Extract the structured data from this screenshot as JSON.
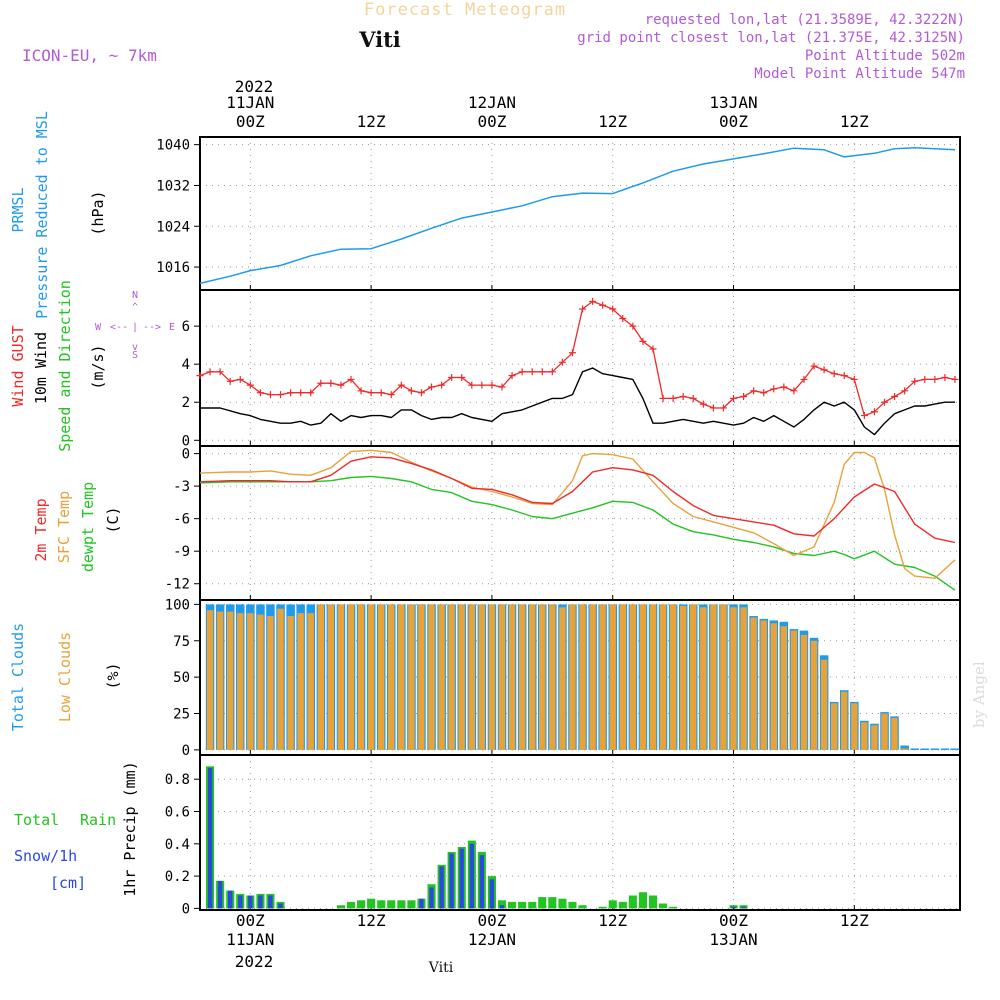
{
  "header": {
    "title": "Forecast Meteogram",
    "station": "Viti",
    "model": "ICON-EU, ~ 7km",
    "requested": "requested lon,lat (21.3589E, 42.3222N)",
    "gridpoint": "grid point closest lon,lat (21.375E, 42.3125N)",
    "point_alt": "Point Altitude 502m",
    "model_alt": "Model Point Altitude 547m",
    "footer_station": "Viti",
    "watermark": "by Angel"
  },
  "time_axis": {
    "year": "2022",
    "ticks": [
      {
        "h": 0,
        "top": "11JAN",
        "label": "00Z"
      },
      {
        "h": 12,
        "top": "",
        "label": "12Z"
      },
      {
        "h": 24,
        "top": "12JAN",
        "label": "00Z"
      },
      {
        "h": 36,
        "top": "",
        "label": "12Z"
      },
      {
        "h": 48,
        "top": "13JAN",
        "label": "00Z"
      },
      {
        "h": 60,
        "top": "",
        "label": "12Z"
      }
    ],
    "range_hours": [
      -5,
      70.5
    ]
  },
  "colors": {
    "pressure": "#1e9bea",
    "gust": "#ee2a2a",
    "wind10": "#000000",
    "temp2m": "#ee2a2a",
    "sfc": "#e8a23a",
    "dewpt": "#22c422",
    "total_cloud": "#1e9bea",
    "low_cloud": "#e8a23a",
    "rain": "#22c422",
    "snow": "#2a4ade",
    "title": "#f2d59c",
    "purple": "#b25ad6"
  },
  "chart_data": [
    {
      "id": "pressure",
      "type": "line",
      "ylabels": [
        "PRMSL",
        "Pressure Reduced to MSL",
        "(hPa)"
      ],
      "yticks": [
        1016,
        1024,
        1032,
        1040
      ],
      "ylim": [
        1011.5,
        1041.5
      ],
      "grid": true,
      "series": [
        {
          "x": [
            -5,
            -2,
            0,
            3,
            6,
            9,
            12,
            15,
            18,
            21,
            24,
            27,
            30,
            33,
            36,
            39,
            42,
            45,
            48,
            51,
            54,
            57,
            59,
            62,
            64,
            66,
            68,
            70
          ],
          "y": [
            1012.8,
            1014.2,
            1015.3,
            1016.3,
            1018.2,
            1019.5,
            1019.6,
            1021.5,
            1023.6,
            1025.6,
            1026.8,
            1028.0,
            1029.8,
            1030.5,
            1030.4,
            1032.5,
            1034.8,
            1036.2,
            1037.2,
            1038.2,
            1039.3,
            1039.0,
            1037.6,
            1038.3,
            1039.2,
            1039.4,
            1039.2,
            1039.0
          ]
        }
      ]
    },
    {
      "id": "wind",
      "type": "line",
      "ylabels": [
        "Wind GUST",
        "10m Wind",
        "Speed and Direction",
        "(m/s)"
      ],
      "compass": [
        "N",
        "W",
        "E",
        "S"
      ],
      "yticks": [
        0,
        2,
        4,
        6
      ],
      "ylim": [
        -0.3,
        7.9
      ],
      "grid": true,
      "series": [
        {
          "name": "Wind GUST",
          "x": [
            -5,
            -4,
            -3,
            -2,
            -1,
            0,
            1,
            2,
            3,
            4,
            5,
            6,
            7,
            8,
            9,
            10,
            11,
            12,
            13,
            14,
            15,
            16,
            17,
            18,
            19,
            20,
            21,
            22,
            23,
            24,
            25,
            26,
            27,
            28,
            29,
            30,
            31,
            32,
            33,
            34,
            35,
            36,
            37,
            38,
            39,
            40,
            41,
            42,
            43,
            44,
            45,
            46,
            47,
            48,
            49,
            50,
            51,
            52,
            53,
            54,
            55,
            56,
            57,
            58,
            59,
            60,
            61,
            62,
            63,
            64,
            65,
            66,
            67,
            68,
            69,
            70
          ],
          "y": [
            3.4,
            3.6,
            3.6,
            3.1,
            3.2,
            2.9,
            2.5,
            2.4,
            2.4,
            2.5,
            2.5,
            2.5,
            3.0,
            3.0,
            2.9,
            3.2,
            2.6,
            2.5,
            2.5,
            2.4,
            2.9,
            2.6,
            2.5,
            2.8,
            2.9,
            3.3,
            3.3,
            2.9,
            2.9,
            2.9,
            2.8,
            3.4,
            3.6,
            3.6,
            3.6,
            3.6,
            4.1,
            4.6,
            6.9,
            7.3,
            7.1,
            6.9,
            6.4,
            6.0,
            5.2,
            4.8,
            2.2,
            2.2,
            2.3,
            2.2,
            1.9,
            1.7,
            1.7,
            2.2,
            2.3,
            2.6,
            2.5,
            2.7,
            2.8,
            2.6,
            3.2,
            3.9,
            3.7,
            3.5,
            3.4,
            3.2,
            1.3,
            1.5,
            2.0,
            2.3,
            2.6,
            3.1,
            3.2,
            3.2,
            3.3,
            3.2
          ]
        },
        {
          "name": "10m Wind",
          "x": [
            -5,
            -3,
            -1,
            0,
            1,
            2,
            3,
            4,
            5,
            6,
            7,
            8,
            9,
            10,
            11,
            12,
            13,
            14,
            15,
            16,
            17,
            18,
            19,
            20,
            21,
            22,
            23,
            24,
            25,
            26,
            27,
            28,
            29,
            30,
            31,
            32,
            33,
            34,
            35,
            36,
            37,
            38,
            39,
            40,
            41,
            42,
            43,
            44,
            45,
            46,
            47,
            48,
            49,
            50,
            51,
            52,
            53,
            54,
            55,
            56,
            57,
            58,
            59,
            60,
            61,
            62,
            63,
            64,
            65,
            66,
            67,
            68,
            69,
            70
          ],
          "y": [
            1.7,
            1.7,
            1.4,
            1.3,
            1.1,
            1.0,
            0.9,
            0.9,
            1.0,
            0.8,
            0.9,
            1.4,
            1.0,
            1.3,
            1.2,
            1.3,
            1.3,
            1.2,
            1.6,
            1.6,
            1.3,
            1.1,
            1.2,
            1.2,
            1.4,
            1.2,
            1.1,
            1.0,
            1.4,
            1.5,
            1.6,
            1.8,
            2.0,
            2.2,
            2.2,
            2.4,
            3.6,
            3.8,
            3.5,
            3.4,
            3.3,
            3.2,
            2.2,
            0.9,
            0.9,
            1.0,
            1.1,
            1.0,
            0.9,
            1.0,
            0.9,
            0.8,
            0.9,
            1.2,
            1.0,
            1.3,
            1.0,
            0.7,
            1.1,
            1.6,
            2.0,
            1.8,
            2.0,
            1.6,
            0.7,
            0.3,
            0.9,
            1.4,
            1.6,
            1.8,
            1.8,
            1.9,
            2.0,
            2.0
          ]
        }
      ]
    },
    {
      "id": "temperature",
      "type": "line",
      "ylabels": [
        "2m Temp",
        "SFC Temp",
        "dewpt Temp",
        "(C)"
      ],
      "yticks": [
        0,
        -3,
        -6,
        -9,
        -12
      ],
      "ylim": [
        -13.5,
        0.7
      ],
      "grid": true,
      "series": [
        {
          "name": "2m Temp",
          "x": [
            -5,
            -2,
            0,
            2,
            4,
            6,
            8,
            10,
            12,
            14,
            16,
            18,
            20,
            22,
            24,
            26,
            28,
            30,
            32,
            34,
            36,
            38,
            40,
            42,
            44,
            46,
            48,
            50,
            52,
            54,
            56,
            58,
            60,
            62,
            64,
            66,
            68,
            70
          ],
          "y": [
            -2.6,
            -2.5,
            -2.5,
            -2.5,
            -2.6,
            -2.6,
            -2.0,
            -0.7,
            -0.3,
            -0.4,
            -0.9,
            -1.5,
            -2.3,
            -3.2,
            -3.3,
            -3.8,
            -4.5,
            -4.6,
            -3.5,
            -1.7,
            -1.3,
            -1.5,
            -2.0,
            -3.5,
            -4.8,
            -5.7,
            -6.0,
            -6.3,
            -6.6,
            -7.4,
            -7.6,
            -6.0,
            -4.0,
            -2.8,
            -3.5,
            -6.5,
            -7.8,
            -8.2
          ]
        },
        {
          "name": "SFC Temp",
          "x": [
            -5,
            -2,
            0,
            2,
            4,
            6,
            8,
            10,
            12,
            14,
            16,
            18,
            20,
            22,
            24,
            26,
            28,
            30,
            32,
            33,
            34,
            36,
            38,
            40,
            42,
            44,
            46,
            48,
            50,
            52,
            54,
            56,
            58,
            59,
            60,
            61,
            62,
            63,
            64,
            65,
            66,
            68,
            70
          ],
          "y": [
            -1.8,
            -1.7,
            -1.7,
            -1.6,
            -1.9,
            -2.0,
            -1.3,
            0.2,
            0.3,
            0.1,
            -0.8,
            -1.6,
            -2.3,
            -3.1,
            -3.5,
            -4.0,
            -4.6,
            -4.7,
            -2.5,
            -0.2,
            0.0,
            -0.1,
            -0.5,
            -2.6,
            -4.6,
            -5.8,
            -6.3,
            -6.8,
            -7.3,
            -8.3,
            -9.4,
            -8.6,
            -4.5,
            -1.0,
            0.1,
            0.1,
            -0.4,
            -3.3,
            -7.5,
            -10.6,
            -11.3,
            -11.5,
            -9.8
          ]
        },
        {
          "name": "dewpt Temp",
          "x": [
            -5,
            -2,
            0,
            2,
            4,
            6,
            8,
            10,
            12,
            14,
            16,
            18,
            20,
            22,
            24,
            26,
            28,
            30,
            32,
            34,
            36,
            38,
            40,
            42,
            44,
            46,
            48,
            50,
            52,
            54,
            56,
            58,
            59,
            60,
            62,
            64,
            66,
            68,
            70
          ],
          "y": [
            -2.7,
            -2.6,
            -2.6,
            -2.6,
            -2.6,
            -2.6,
            -2.5,
            -2.2,
            -2.1,
            -2.3,
            -2.6,
            -3.3,
            -3.6,
            -4.4,
            -4.7,
            -5.2,
            -5.8,
            -6.0,
            -5.5,
            -5.0,
            -4.4,
            -4.5,
            -5.2,
            -6.5,
            -7.2,
            -7.5,
            -7.9,
            -8.2,
            -8.6,
            -9.2,
            -9.4,
            -9.0,
            -9.3,
            -9.7,
            -9.0,
            -10.2,
            -10.5,
            -11.3,
            -12.6
          ]
        }
      ]
    },
    {
      "id": "clouds",
      "type": "bar",
      "ylabels": [
        "Total Clouds",
        "Low Clouds",
        "(%)"
      ],
      "yticks": [
        0,
        25,
        50,
        75,
        100
      ],
      "ylim": [
        -3.5,
        103
      ],
      "grid": true,
      "x_start": -4,
      "series": [
        {
          "name": "Total Clouds",
          "values": [
            100,
            100,
            100,
            100,
            100,
            100,
            100,
            100,
            100,
            100,
            100,
            100,
            100,
            100,
            100,
            100,
            100,
            100,
            100,
            100,
            100,
            100,
            100,
            100,
            100,
            100,
            100,
            100,
            100,
            100,
            100,
            100,
            100,
            100,
            100,
            100,
            100,
            100,
            100,
            100,
            100,
            100,
            100,
            100,
            100,
            100,
            100,
            100,
            100,
            100,
            100,
            100,
            100,
            100,
            92,
            90,
            89,
            88,
            83,
            82,
            77,
            65,
            33,
            41,
            33,
            20,
            18,
            26,
            23,
            3,
            1,
            1,
            1,
            1,
            1
          ]
        },
        {
          "name": "Low Clouds",
          "values": [
            96,
            95,
            95,
            94,
            94,
            93,
            92,
            97,
            92,
            94,
            94,
            100,
            100,
            100,
            100,
            100,
            100,
            100,
            100,
            100,
            100,
            100,
            100,
            100,
            100,
            100,
            100,
            100,
            100,
            100,
            100,
            100,
            100,
            100,
            100,
            98,
            100,
            100,
            100,
            100,
            100,
            100,
            100,
            100,
            100,
            100,
            100,
            99,
            100,
            98,
            100,
            100,
            98,
            98,
            91,
            89,
            87,
            85,
            82,
            79,
            75,
            62,
            32,
            40,
            32,
            19,
            17,
            25,
            22,
            1,
            0,
            0,
            0,
            0,
            0
          ]
        }
      ]
    },
    {
      "id": "precip",
      "type": "bar",
      "ylabels": [
        "1hr Precip (mm)"
      ],
      "side_labels": [
        "Total",
        "Rain",
        "Snow/1h",
        "[cm]"
      ],
      "yticks": [
        0,
        0.2,
        0.4,
        0.6,
        0.8
      ],
      "ylim": [
        -0.01,
        0.95
      ],
      "grid": true,
      "x_start": -4,
      "series": [
        {
          "name": "Total",
          "values": [
            0.88,
            0.17,
            0.11,
            0.09,
            0.08,
            0.09,
            0.09,
            0.04,
            0,
            0,
            0,
            0,
            0,
            0.02,
            0.04,
            0.05,
            0.06,
            0.05,
            0.05,
            0.05,
            0.05,
            0.06,
            0.15,
            0.27,
            0.35,
            0.38,
            0.42,
            0.35,
            0.2,
            0.05,
            0.04,
            0.04,
            0.04,
            0.07,
            0.07,
            0.06,
            0.04,
            0.02,
            0,
            0.01,
            0.05,
            0.04,
            0.08,
            0.1,
            0.08,
            0.03,
            0.01,
            0,
            0,
            0,
            0,
            0,
            0.02,
            0.02,
            0,
            0,
            0,
            0,
            0,
            0,
            0,
            0,
            0,
            0,
            0,
            0,
            0,
            0,
            0,
            0,
            0,
            0,
            0,
            0,
            0
          ]
        },
        {
          "name": "Snow/1h",
          "values": [
            0.87,
            0.17,
            0.11,
            0.08,
            0.08,
            0.08,
            0.08,
            0.03,
            0,
            0,
            0,
            0,
            0,
            0,
            0,
            0,
            0,
            0,
            0,
            0,
            0,
            0.06,
            0.13,
            0.26,
            0.34,
            0.37,
            0.4,
            0.33,
            0.18,
            0.02,
            0,
            0,
            0,
            0,
            0,
            0,
            0,
            0,
            0,
            0,
            0,
            0,
            0,
            0,
            0,
            0,
            0,
            0,
            0,
            0,
            0,
            0,
            0.01,
            0.01,
            0,
            0,
            0,
            0,
            0,
            0,
            0,
            0,
            0,
            0,
            0,
            0,
            0,
            0,
            0,
            0,
            0,
            0,
            0,
            0,
            0
          ]
        }
      ]
    }
  ]
}
